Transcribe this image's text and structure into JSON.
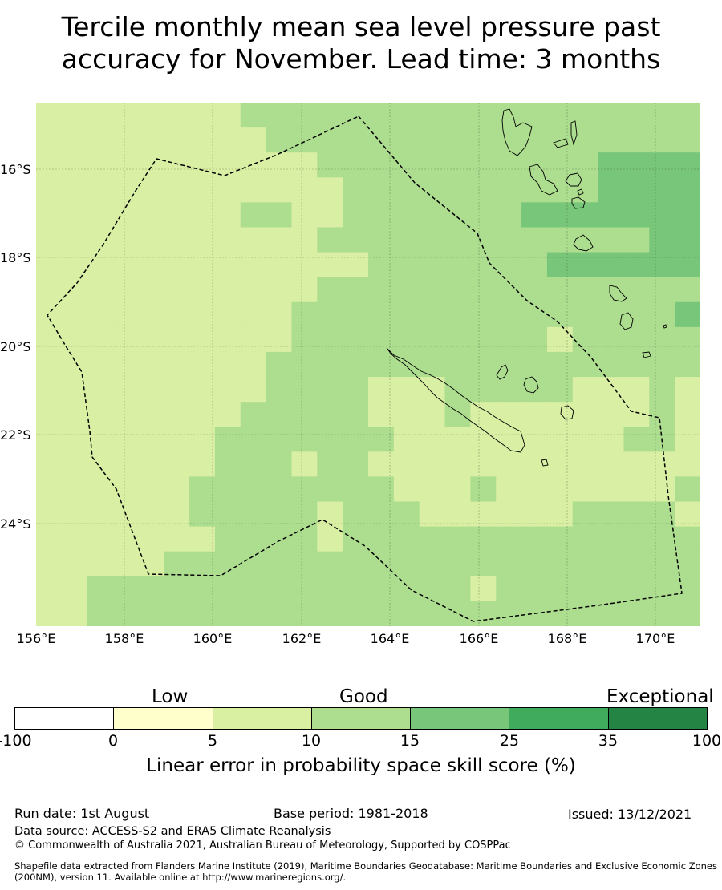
{
  "title_line1": "Tercile monthly mean sea level pressure past",
  "title_line2": "accuracy for November. Lead time: 3 months",
  "map": {
    "lon_labels": [
      "156°E",
      "158°E",
      "160°E",
      "162°E",
      "164°E",
      "166°E",
      "168°E",
      "170°E"
    ],
    "lat_labels": [
      "16°S",
      "18°S",
      "20°S",
      "22°S",
      "24°S"
    ],
    "skill_grid_levels": [
      "11111111222222222222222222",
      "11111111122222222222222222",
      "11111111111222222222223333",
      "11111111111122222222223333",
      "11111111221122222223333333",
      "11111111111222222222222233",
      "11111111111112222222333333",
      "11111111111222222222222222",
      "11111111112222222222222223",
      "11111111112222222222122222",
      "11111111122222222222222222",
      "11111111122221112222211121",
      "11111111222221112111111121",
      "11111112222222111111111221",
      "11111112221221111111111111",
      "11111122222222111211111112",
      "11111122222122211111122221",
      "11111112222122222222222222",
      "11111222222222222222222222",
      "11222222222222222122222222",
      "11222222222222222222222222"
    ],
    "colors": {
      "level_1": "#d9efa3",
      "level_2": "#addd8e",
      "level_3": "#78c679",
      "land": "none",
      "outline": "#000000"
    }
  },
  "colorbar": {
    "category_labels": [
      "Low",
      "Good",
      "Exceptional"
    ],
    "ticks": [
      "-100",
      "0",
      "5",
      "10",
      "15",
      "25",
      "35",
      "100"
    ],
    "colors": [
      "#ffffff",
      "#ffffcc",
      "#d9f0a3",
      "#addd8e",
      "#78c679",
      "#41ab5d",
      "#238443"
    ],
    "label": "Linear error in probability space skill score (%)"
  },
  "footer": {
    "run_date": "Run date: 1st August",
    "base_period": "Base period: 1981-2018",
    "issued": "Issued: 13/12/2021",
    "data_source": "Data source: ACCESS-S2 and ERA5 Climate Reanalysis",
    "copyright": "© Commonwealth of Australia 2021, Australian Bureau of Meteorology, Supported by COSPPac",
    "shapefile": "Shapefile data extracted from Flanders Marine Institute (2019), Maritime Boundaries Geodatabase: Maritime Boundaries and Exclusive Economic Zones (200NM), version 11. Available online at http://www.marineregions.org/."
  }
}
